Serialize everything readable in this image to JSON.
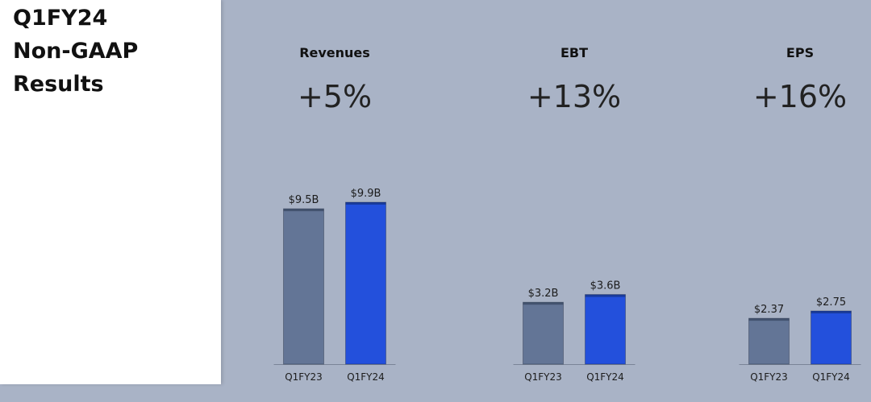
{
  "slide": {
    "title_lines": [
      "Q1FY24",
      "Non-GAAP",
      "Results"
    ]
  },
  "colors": {
    "background": "#a9b3c6",
    "panel": "#ffffff",
    "bar_prior": "#637596",
    "bar_current": "#2350dc",
    "baseline": "#7a8497"
  },
  "chart_data": [
    {
      "type": "bar",
      "title": "Revenues",
      "change_label": "+5%",
      "categories": [
        "Q1FY23",
        "Q1FY24"
      ],
      "values": [
        9.5,
        9.9
      ],
      "value_labels": [
        "$9.5B",
        "$9.9B"
      ],
      "unit": "$B"
    },
    {
      "type": "bar",
      "title": "EBT",
      "change_label": "+13%",
      "categories": [
        "Q1FY23",
        "Q1FY24"
      ],
      "values": [
        3.2,
        3.6
      ],
      "value_labels": [
        "$3.2B",
        "$3.6B"
      ],
      "unit": "$B"
    },
    {
      "type": "bar",
      "title": "EPS",
      "change_label": "+16%",
      "categories": [
        "Q1FY23",
        "Q1FY24"
      ],
      "values": [
        2.37,
        2.75
      ],
      "value_labels": [
        "$2.37",
        "$2.75"
      ],
      "unit": "$"
    }
  ]
}
